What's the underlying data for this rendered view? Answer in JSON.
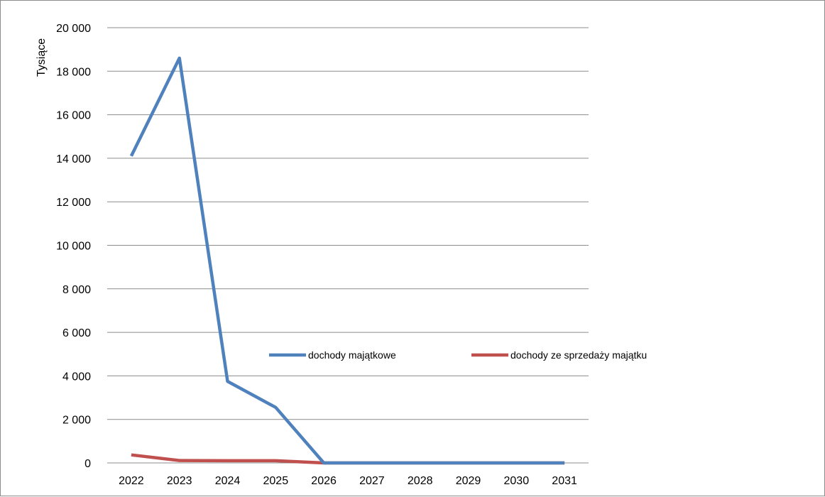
{
  "chart_data": {
    "type": "line",
    "title": "",
    "xlabel": "",
    "ylabel": "Tysiące",
    "categories": [
      "2022",
      "2023",
      "2024",
      "2025",
      "2026",
      "2027",
      "2028",
      "2029",
      "2030",
      "2031"
    ],
    "ylim": [
      0,
      20000
    ],
    "yticks": [
      0,
      2000,
      4000,
      6000,
      8000,
      10000,
      12000,
      14000,
      16000,
      18000,
      20000
    ],
    "ytick_labels": [
      "0",
      "2 000",
      "4 000",
      "6 000",
      "8 000",
      "10 000",
      "12 000",
      "14 000",
      "16 000",
      "18 000",
      "20 000"
    ],
    "grid": true,
    "legend_position": "center-right",
    "series": [
      {
        "name": "dochody majątkowe",
        "color": "#4f81bd",
        "values": [
          14100,
          18600,
          3750,
          2550,
          0,
          0,
          0,
          0,
          0,
          0
        ]
      },
      {
        "name": "dochody ze sprzedaży majątku",
        "color": "#c0504d",
        "values": [
          370,
          110,
          100,
          100,
          0,
          0,
          0,
          0,
          0,
          0
        ]
      }
    ]
  }
}
